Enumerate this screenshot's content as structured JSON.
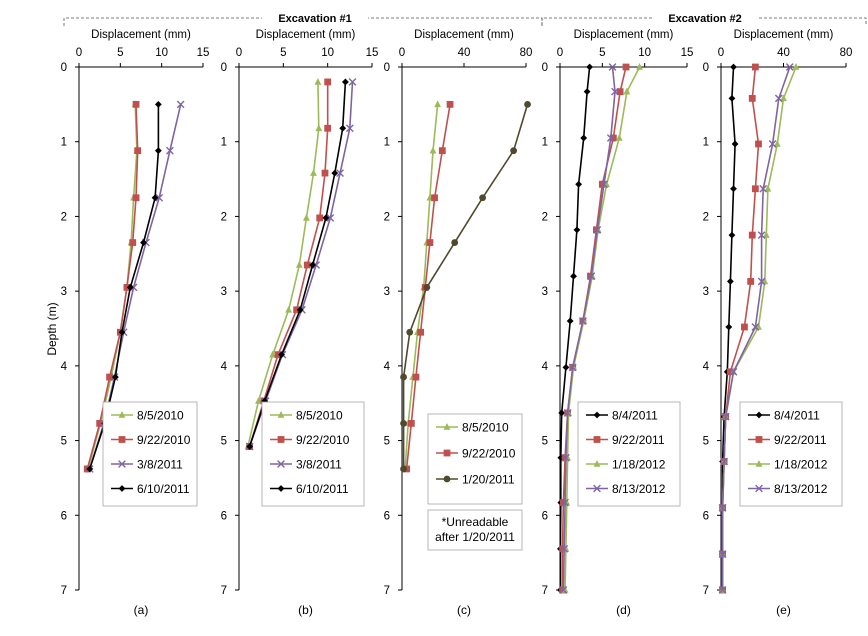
{
  "header": {
    "group1_title": "Excavation #1",
    "group2_title": "Excavation #2"
  },
  "y_axis": {
    "label": "Depth (m)",
    "ticks": [
      0,
      1,
      2,
      3,
      4,
      5,
      6,
      7
    ],
    "ylim": [
      0,
      7
    ],
    "reversed": true
  },
  "colors": {
    "green": "#9bbb59",
    "red": "#c0504d",
    "purple": "#8064a2",
    "black": "#000000",
    "olive": "#4f4a2e"
  },
  "chart_data": [
    {
      "type": "line",
      "panel_label": "(a)",
      "group": "Excavation #1",
      "xlabel": "Displacement (mm)",
      "xlim": [
        0,
        15
      ],
      "xticks": [
        0,
        5,
        10,
        15
      ],
      "ylabel": "Depth (m)",
      "legend_position": "bottom-right",
      "series": [
        {
          "name": "8/5/2010",
          "color": "#9bbb59",
          "marker": "triangle",
          "x": [
            6.8,
            7.0,
            6.6,
            6.3,
            5.8,
            5.0,
            3.9,
            2.6,
            1.1
          ],
          "y": [
            0.5,
            1.12,
            1.75,
            2.35,
            2.95,
            3.55,
            4.15,
            4.77,
            5.38
          ]
        },
        {
          "name": "9/22/2010",
          "color": "#c0504d",
          "marker": "square",
          "x": [
            6.9,
            7.1,
            6.9,
            6.5,
            5.8,
            5.0,
            3.7,
            2.5,
            1.0
          ],
          "y": [
            0.5,
            1.12,
            1.75,
            2.35,
            2.95,
            3.55,
            4.15,
            4.77,
            5.38
          ]
        },
        {
          "name": "3/8/2011",
          "color": "#8064a2",
          "marker": "x",
          "x": [
            12.3,
            11.0,
            9.7,
            8.1,
            6.6,
            5.4,
            4.3,
            3.0,
            1.3
          ],
          "y": [
            0.5,
            1.12,
            1.75,
            2.35,
            2.95,
            3.55,
            4.15,
            4.77,
            5.38
          ]
        },
        {
          "name": "6/10/2011",
          "color": "#000000",
          "marker": "diamond",
          "x": [
            9.6,
            9.6,
            9.2,
            7.8,
            6.2,
            5.2,
            4.4,
            3.1,
            1.3
          ],
          "y": [
            0.5,
            1.12,
            1.75,
            2.35,
            2.95,
            3.55,
            4.15,
            4.77,
            5.38
          ]
        }
      ]
    },
    {
      "type": "line",
      "panel_label": "(b)",
      "group": "Excavation #1",
      "xlabel": "Displacement (mm)",
      "xlim": [
        0,
        15
      ],
      "xticks": [
        0,
        5,
        10,
        15
      ],
      "legend_position": "bottom-right",
      "series": [
        {
          "name": "8/5/2010",
          "color": "#9bbb59",
          "marker": "triangle",
          "x": [
            8.9,
            9.0,
            8.4,
            7.6,
            6.8,
            5.6,
            3.8,
            2.2,
            1.0
          ],
          "y": [
            0.2,
            0.82,
            1.42,
            2.02,
            2.65,
            3.25,
            3.85,
            4.47,
            5.08
          ]
        },
        {
          "name": "9/22/2010",
          "color": "#c0504d",
          "marker": "square",
          "x": [
            10.0,
            10.0,
            9.7,
            9.1,
            7.7,
            6.5,
            4.4,
            2.8,
            1.2
          ],
          "y": [
            0.2,
            0.82,
            1.42,
            2.02,
            2.65,
            3.25,
            3.85,
            4.47,
            5.08
          ]
        },
        {
          "name": "3/8/2011",
          "color": "#8064a2",
          "marker": "x",
          "x": [
            12.8,
            12.5,
            11.4,
            10.3,
            8.7,
            7.1,
            4.9,
            3.0,
            1.2
          ],
          "y": [
            0.2,
            0.82,
            1.42,
            2.02,
            2.65,
            3.25,
            3.85,
            4.47,
            5.08
          ]
        },
        {
          "name": "6/10/2011",
          "color": "#000000",
          "marker": "diamond",
          "x": [
            12.0,
            11.7,
            10.8,
            9.8,
            8.3,
            6.9,
            4.8,
            2.9,
            1.2
          ],
          "y": [
            0.2,
            0.82,
            1.42,
            2.02,
            2.65,
            3.25,
            3.85,
            4.47,
            5.08
          ]
        }
      ]
    },
    {
      "type": "line",
      "panel_label": "(c)",
      "group": "Excavation #1",
      "xlabel": "Displacement (mm)",
      "xlim": [
        0,
        80
      ],
      "xticks": [
        0,
        40,
        80
      ],
      "legend_position": "bottom-right",
      "note": "*Unreadable after 1/20/2011",
      "series": [
        {
          "name": "8/5/2010",
          "color": "#9bbb59",
          "marker": "triangle",
          "x": [
            23,
            20,
            18,
            16,
            14,
            10,
            7,
            4,
            2
          ],
          "y": [
            0.5,
            1.12,
            1.75,
            2.35,
            2.95,
            3.55,
            4.15,
            4.77,
            5.38
          ]
        },
        {
          "name": "9/22/2010",
          "color": "#c0504d",
          "marker": "square",
          "x": [
            31,
            26,
            21,
            18,
            15,
            12,
            9,
            6,
            3
          ],
          "y": [
            0.5,
            1.12,
            1.75,
            2.35,
            2.95,
            3.55,
            4.15,
            4.77,
            5.38
          ]
        },
        {
          "name": "1/20/2011",
          "color": "#4f4a2e",
          "marker": "circle",
          "x": [
            81,
            72,
            52,
            34,
            16,
            5,
            1,
            1,
            1
          ],
          "y": [
            0.5,
            1.12,
            1.75,
            2.35,
            2.95,
            3.55,
            4.15,
            4.77,
            5.38
          ]
        }
      ]
    },
    {
      "type": "line",
      "panel_label": "(d)",
      "group": "Excavation #2",
      "xlabel": "Displacement (mm)",
      "xlim": [
        0,
        15
      ],
      "xticks": [
        0,
        5,
        10,
        15
      ],
      "legend_position": "bottom-right",
      "series": [
        {
          "name": "8/4/2011",
          "color": "#000000",
          "marker": "diamond",
          "x": [
            3.5,
            3.2,
            2.8,
            2.2,
            2.0,
            1.6,
            1.2,
            0.7,
            0.2,
            0.1,
            0.1,
            0.05,
            0.05
          ],
          "y": [
            0,
            0.33,
            0.95,
            1.57,
            2.18,
            2.8,
            3.4,
            4.02,
            4.63,
            5.23,
            5.83,
            6.45,
            7.0
          ]
        },
        {
          "name": "9/22/2011",
          "color": "#c0504d",
          "marker": "square",
          "x": [
            7.8,
            7.1,
            6.3,
            5.0,
            4.3,
            3.6,
            2.7,
            1.5,
            0.9,
            0.6,
            0.4,
            0.3,
            0.3
          ],
          "y": [
            0,
            0.33,
            0.95,
            1.57,
            2.18,
            2.8,
            3.4,
            4.02,
            4.63,
            5.23,
            5.83,
            6.45,
            7.0
          ]
        },
        {
          "name": "1/18/2012",
          "color": "#9bbb59",
          "marker": "triangle",
          "x": [
            9.4,
            7.9,
            7.0,
            5.5,
            4.5,
            3.8,
            2.8,
            1.6,
            1.0,
            0.9,
            0.8,
            0.7,
            0.6
          ],
          "y": [
            0,
            0.33,
            0.95,
            1.57,
            2.18,
            2.8,
            3.4,
            4.02,
            4.63,
            5.23,
            5.83,
            6.45,
            7.0
          ]
        },
        {
          "name": "8/13/2012",
          "color": "#8064a2",
          "marker": "x",
          "x": [
            6.2,
            6.5,
            6.0,
            5.2,
            4.4,
            3.7,
            2.7,
            1.5,
            0.9,
            0.7,
            0.6,
            0.5,
            0.4
          ],
          "y": [
            0,
            0.33,
            0.95,
            1.57,
            2.18,
            2.8,
            3.4,
            4.02,
            4.63,
            5.23,
            5.83,
            6.45,
            7.0
          ]
        }
      ]
    },
    {
      "type": "line",
      "panel_label": "(e)",
      "group": "Excavation #2",
      "xlabel": "Displacement (mm)",
      "xlim": [
        0,
        80
      ],
      "xticks": [
        0,
        40,
        80
      ],
      "legend_position": "bottom-right",
      "series": [
        {
          "name": "8/4/2011",
          "color": "#000000",
          "marker": "diamond",
          "x": [
            8,
            7,
            9,
            8,
            7,
            6,
            5,
            4,
            2,
            1,
            1,
            1,
            1
          ],
          "y": [
            0,
            0.42,
            1.03,
            1.63,
            2.25,
            2.87,
            3.48,
            4.08,
            4.68,
            5.28,
            5.9,
            6.52,
            7.0
          ]
        },
        {
          "name": "9/22/2011",
          "color": "#c0504d",
          "marker": "square",
          "x": [
            22,
            20,
            24,
            22,
            20,
            19,
            15,
            6,
            3,
            2,
            1,
            1,
            1
          ],
          "y": [
            0,
            0.42,
            1.03,
            1.63,
            2.25,
            2.87,
            3.48,
            4.08,
            4.68,
            5.28,
            5.9,
            6.52,
            7.0
          ]
        },
        {
          "name": "1/18/2012",
          "color": "#9bbb59",
          "marker": "triangle",
          "x": [
            48,
            40,
            36,
            30,
            29,
            28,
            24,
            8,
            3,
            2,
            1,
            1,
            1
          ],
          "y": [
            0,
            0.42,
            1.03,
            1.63,
            2.25,
            2.87,
            3.48,
            4.08,
            4.68,
            5.28,
            5.9,
            6.52,
            7.0
          ]
        },
        {
          "name": "8/13/2012",
          "color": "#8064a2",
          "marker": "x",
          "x": [
            44,
            37,
            33,
            27,
            26,
            26,
            22,
            8,
            3,
            2,
            1,
            1,
            1
          ],
          "y": [
            0,
            0.42,
            1.03,
            1.63,
            2.25,
            2.87,
            3.48,
            4.08,
            4.68,
            5.28,
            5.9,
            6.52,
            7.0
          ]
        }
      ]
    }
  ]
}
